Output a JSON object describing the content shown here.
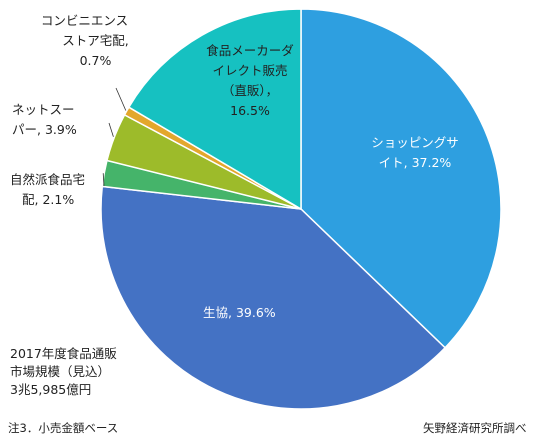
{
  "chart_data": {
    "type": "pie",
    "series": [
      {
        "label_lines": [
          "ショッピングサ",
          "イト, 37.2%"
        ],
        "value": 37.2,
        "color": "#2E9FE0"
      },
      {
        "label_lines": [
          "生協, 39.6%"
        ],
        "value": 39.6,
        "color": "#4472C4"
      },
      {
        "label_lines": [
          "自然派食品宅",
          "配, 2.1%"
        ],
        "value": 2.1,
        "color": "#45B46A"
      },
      {
        "label_lines": [
          "ネットスー",
          "パー, 3.9%"
        ],
        "value": 3.9,
        "color": "#9DBB2A"
      },
      {
        "label_lines": [
          "コンビニエンス",
          "ストア宅配,",
          "0.7%"
        ],
        "value": 0.7,
        "color": "#E3A72C"
      },
      {
        "label_lines": [
          "食品メーカーダ",
          "イレクト販売",
          "（直販），",
          "16.5%"
        ],
        "value": 16.5,
        "color": "#16C1C1"
      }
    ],
    "total_label_lines": [
      "2017年度食品通販",
      "市場規模（見込）",
      "3兆5,985億円"
    ]
  },
  "footer": {
    "note": "注3．小売金額ベース",
    "source": "矢野経済研究所調べ"
  }
}
